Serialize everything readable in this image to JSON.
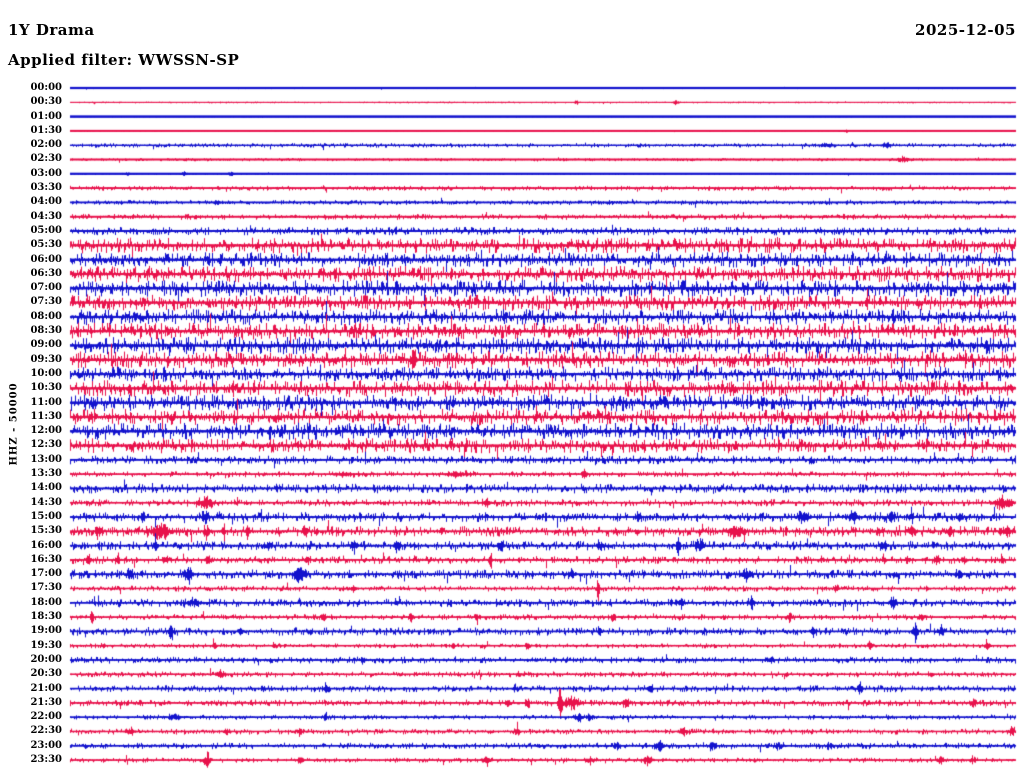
{
  "header": {
    "station": "1Y Drama",
    "date": "2025-12-05",
    "filter_label": "Applied filter: WWSSN-SP"
  },
  "y_axis_label": "HHZ - 50000",
  "chart_data": {
    "type": "line",
    "subtype": "helicorder-day-plot",
    "title": "1Y Drama",
    "date": "2025-12-05",
    "filter": "WWSSN-SP",
    "channel_scale_label": "HHZ - 50000",
    "row_minutes": 30,
    "rows_count": 48,
    "grid": false,
    "legend": "none",
    "colors": {
      "blue": "#1212cd",
      "red": "#e8114b"
    },
    "amplitude_note": "noise = background envelope half-height in px; events = [x_fraction_of_row, peak_amp_px, sigma_px]",
    "rows": [
      {
        "t": "00:00",
        "c": "blue",
        "base": 2.2,
        "noise": 0.3,
        "events": []
      },
      {
        "t": "00:30",
        "c": "red",
        "base": 1.0,
        "noise": 0.3,
        "events": [
          [
            0.535,
            2,
            1.2
          ],
          [
            0.64,
            2,
            2
          ]
        ]
      },
      {
        "t": "01:00",
        "c": "blue",
        "base": 2.5,
        "noise": 0.15,
        "events": []
      },
      {
        "t": "01:30",
        "c": "red",
        "base": 2.0,
        "noise": 0.2,
        "events": [
          [
            0.82,
            1.5,
            1.2
          ]
        ]
      },
      {
        "t": "02:00",
        "c": "blue",
        "base": 1.2,
        "noise": 0.9,
        "events": [
          [
            0.8,
            2,
            4
          ],
          [
            0.862,
            2.5,
            3
          ]
        ]
      },
      {
        "t": "02:30",
        "c": "red",
        "base": 2.0,
        "noise": 0.6,
        "events": [
          [
            0.88,
            2.5,
            4
          ]
        ]
      },
      {
        "t": "03:00",
        "c": "blue",
        "base": 2.2,
        "noise": 0.35,
        "events": [
          [
            0.06,
            1.5,
            2
          ],
          [
            0.12,
            2,
            2
          ],
          [
            0.17,
            2,
            2
          ]
        ]
      },
      {
        "t": "03:30",
        "c": "red",
        "base": 1.8,
        "noise": 1.0,
        "events": []
      },
      {
        "t": "04:00",
        "c": "blue",
        "base": 1.8,
        "noise": 1.0,
        "events": [
          [
            0.155,
            2.5,
            2
          ]
        ]
      },
      {
        "t": "04:30",
        "c": "red",
        "base": 1.8,
        "noise": 1.2,
        "events": []
      },
      {
        "t": "05:00",
        "c": "blue",
        "base": 2.0,
        "noise": 1.7,
        "events": []
      },
      {
        "t": "05:30",
        "c": "red",
        "base": 1.6,
        "noise": 3.3,
        "events": []
      },
      {
        "t": "06:00",
        "c": "blue",
        "base": 1.6,
        "noise": 3.2,
        "events": []
      },
      {
        "t": "06:30",
        "c": "red",
        "base": 1.6,
        "noise": 3.4,
        "events": []
      },
      {
        "t": "07:00",
        "c": "blue",
        "base": 1.6,
        "noise": 3.6,
        "events": []
      },
      {
        "t": "07:30",
        "c": "red",
        "base": 1.6,
        "noise": 3.4,
        "events": []
      },
      {
        "t": "08:00",
        "c": "blue",
        "base": 1.6,
        "noise": 3.4,
        "events": []
      },
      {
        "t": "08:30",
        "c": "red",
        "base": 1.6,
        "noise": 3.6,
        "events": []
      },
      {
        "t": "09:00",
        "c": "blue",
        "base": 1.6,
        "noise": 3.6,
        "events": []
      },
      {
        "t": "09:30",
        "c": "red",
        "base": 1.6,
        "noise": 3.6,
        "events": [
          [
            0.363,
            11,
            1.2
          ]
        ]
      },
      {
        "t": "10:00",
        "c": "blue",
        "base": 1.6,
        "noise": 3.2,
        "events": []
      },
      {
        "t": "10:30",
        "c": "red",
        "base": 1.6,
        "noise": 3.6,
        "events": []
      },
      {
        "t": "11:00",
        "c": "blue",
        "base": 1.6,
        "noise": 3.6,
        "events": []
      },
      {
        "t": "11:30",
        "c": "red",
        "base": 1.6,
        "noise": 3.6,
        "events": []
      },
      {
        "t": "12:00",
        "c": "blue",
        "base": 1.6,
        "noise": 3.6,
        "events": []
      },
      {
        "t": "12:30",
        "c": "red",
        "base": 1.6,
        "noise": 3.2,
        "events": []
      },
      {
        "t": "13:00",
        "c": "blue",
        "base": 1.6,
        "noise": 1.8,
        "events": []
      },
      {
        "t": "13:30",
        "c": "red",
        "base": 1.4,
        "noise": 1.2,
        "events": [
          [
            0.289,
            2,
            6
          ],
          [
            0.41,
            2,
            8
          ],
          [
            0.544,
            5,
            1.5
          ]
        ]
      },
      {
        "t": "14:00",
        "c": "blue",
        "base": 1.6,
        "noise": 2.0,
        "events": []
      },
      {
        "t": "14:30",
        "c": "red",
        "base": 1.4,
        "noise": 1.5,
        "events": [
          [
            0.142,
            5,
            5
          ],
          [
            0.44,
            2,
            3
          ],
          [
            0.986,
            5,
            6
          ]
        ]
      },
      {
        "t": "15:00",
        "c": "blue",
        "base": 1.5,
        "noise": 2.0,
        "events": [
          [
            0.077,
            3,
            2
          ],
          [
            0.143,
            6,
            2
          ],
          [
            0.6,
            4,
            2
          ],
          [
            0.775,
            4,
            4
          ],
          [
            0.828,
            5,
            3
          ],
          [
            0.868,
            5,
            2
          ],
          [
            0.888,
            4,
            2
          ],
          [
            0.94,
            3,
            2
          ]
        ]
      },
      {
        "t": "15:30",
        "c": "red",
        "base": 1.5,
        "noise": 2.2,
        "events": [
          [
            0.03,
            4,
            2
          ],
          [
            0.096,
            6,
            7
          ],
          [
            0.145,
            4,
            2
          ],
          [
            0.162,
            8,
            1.2
          ],
          [
            0.187,
            5,
            1.5
          ],
          [
            0.248,
            4,
            1.5
          ],
          [
            0.705,
            6,
            5
          ],
          [
            0.89,
            4,
            2
          ],
          [
            0.93,
            4,
            2
          ],
          [
            0.99,
            4,
            3
          ]
        ]
      },
      {
        "t": "16:00",
        "c": "blue",
        "base": 1.5,
        "noise": 2.0,
        "events": [
          [
            0.09,
            4,
            1.5
          ],
          [
            0.21,
            4,
            2
          ],
          [
            0.3,
            4,
            2
          ],
          [
            0.345,
            4,
            2
          ],
          [
            0.455,
            4,
            2
          ],
          [
            0.56,
            4,
            2
          ],
          [
            0.643,
            10,
            1.2
          ],
          [
            0.665,
            5,
            3
          ],
          [
            0.86,
            4,
            2
          ]
        ]
      },
      {
        "t": "16:30",
        "c": "red",
        "base": 1.4,
        "noise": 1.6,
        "events": [
          [
            0.02,
            4,
            1.5
          ],
          [
            0.05,
            4,
            1.5
          ],
          [
            0.1,
            4,
            1.5
          ],
          [
            0.145,
            5,
            1.5
          ],
          [
            0.25,
            4,
            1.5
          ],
          [
            0.444,
            8,
            1.2
          ],
          [
            0.86,
            4,
            1.5
          ],
          [
            0.885,
            4,
            1.5
          ],
          [
            0.915,
            4,
            1.5
          ],
          [
            0.945,
            4,
            1.5
          ],
          [
            0.985,
            4,
            1.5
          ]
        ]
      },
      {
        "t": "17:00",
        "c": "blue",
        "base": 1.5,
        "noise": 2.0,
        "events": [
          [
            0.063,
            4,
            1.5
          ],
          [
            0.125,
            7,
            2.5
          ],
          [
            0.243,
            6,
            4
          ],
          [
            0.53,
            3,
            2
          ],
          [
            0.715,
            5,
            3
          ],
          [
            0.94,
            4,
            2
          ]
        ]
      },
      {
        "t": "17:30",
        "c": "red",
        "base": 1.4,
        "noise": 1.2,
        "events": [
          [
            0.3,
            2,
            2
          ],
          [
            0.558,
            12,
            1.0
          ],
          [
            0.81,
            4,
            1.5
          ]
        ]
      },
      {
        "t": "18:00",
        "c": "blue",
        "base": 1.5,
        "noise": 1.7,
        "events": [
          [
            0.13,
            3,
            5
          ],
          [
            0.345,
            3,
            1.5
          ],
          [
            0.645,
            4,
            2
          ],
          [
            0.72,
            4,
            2
          ],
          [
            0.87,
            5,
            2
          ]
        ]
      },
      {
        "t": "18:30",
        "c": "red",
        "base": 1.4,
        "noise": 1.2,
        "events": [
          [
            0.023,
            4,
            1.2
          ],
          [
            0.268,
            3,
            1.5
          ],
          [
            0.36,
            3,
            1.5
          ],
          [
            0.43,
            3,
            1.5
          ],
          [
            0.573,
            4,
            1.5
          ],
          [
            0.76,
            4,
            1.5
          ],
          [
            0.9,
            3,
            1.5
          ]
        ]
      },
      {
        "t": "19:00",
        "c": "blue",
        "base": 1.5,
        "noise": 1.7,
        "events": [
          [
            0.106,
            7,
            1.5
          ],
          [
            0.18,
            3,
            1.5
          ],
          [
            0.56,
            3,
            1.5
          ],
          [
            0.785,
            3,
            1.5
          ],
          [
            0.893,
            10,
            1.5
          ],
          [
            0.92,
            4,
            2
          ]
        ]
      },
      {
        "t": "19:30",
        "c": "red",
        "base": 1.4,
        "noise": 1.0,
        "events": [
          [
            0.035,
            2.5,
            1.2
          ],
          [
            0.153,
            3,
            1.2
          ],
          [
            0.215,
            2.5,
            1.2
          ],
          [
            0.405,
            2.5,
            1.2
          ],
          [
            0.483,
            2.5,
            1.2
          ],
          [
            0.845,
            3,
            1.5
          ],
          [
            0.97,
            3,
            2
          ]
        ]
      },
      {
        "t": "20:00",
        "c": "blue",
        "base": 1.5,
        "noise": 1.4,
        "events": [
          [
            0.31,
            2,
            2
          ],
          [
            0.6,
            2,
            2
          ],
          [
            0.74,
            2,
            2
          ]
        ]
      },
      {
        "t": "20:30",
        "c": "red",
        "base": 1.4,
        "noise": 1.2,
        "events": [
          [
            0.159,
            3,
            3
          ],
          [
            0.475,
            2,
            2
          ],
          [
            0.91,
            2,
            2
          ]
        ]
      },
      {
        "t": "21:00",
        "c": "blue",
        "base": 1.5,
        "noise": 1.4,
        "events": [
          [
            0.27,
            4,
            1.5
          ],
          [
            0.47,
            3,
            1.5
          ],
          [
            0.613,
            3,
            2
          ],
          [
            0.835,
            5,
            1.5
          ]
        ]
      },
      {
        "t": "21:30",
        "c": "red",
        "base": 1.4,
        "noise": 1.4,
        "events": [
          [
            0.462,
            4,
            1.5
          ],
          [
            0.483,
            4,
            1.5
          ],
          [
            0.518,
            12,
            1.5
          ],
          [
            0.53,
            6,
            5
          ],
          [
            0.587,
            4,
            2
          ],
          [
            0.955,
            5,
            1.5
          ]
        ]
      },
      {
        "t": "22:00",
        "c": "blue",
        "base": 1.5,
        "noise": 1.0,
        "events": [
          [
            0.111,
            3,
            4
          ],
          [
            0.27,
            4,
            1.2
          ],
          [
            0.537,
            3,
            3
          ],
          [
            0.55,
            3,
            2
          ]
        ]
      },
      {
        "t": "22:30",
        "c": "red",
        "base": 1.4,
        "noise": 1.2,
        "events": [
          [
            0.063,
            3,
            3
          ],
          [
            0.165,
            3,
            2
          ],
          [
            0.243,
            3,
            1.5
          ],
          [
            0.472,
            3,
            1.5
          ],
          [
            0.648,
            3,
            2
          ],
          [
            0.995,
            4,
            2
          ]
        ]
      },
      {
        "t": "23:00",
        "c": "blue",
        "base": 1.5,
        "noise": 1.3,
        "events": [
          [
            0.578,
            3,
            2
          ],
          [
            0.623,
            4,
            3
          ],
          [
            0.678,
            3,
            2
          ],
          [
            0.75,
            3,
            2
          ],
          [
            0.803,
            3,
            2
          ]
        ]
      },
      {
        "t": "23:30",
        "c": "red",
        "base": 1.4,
        "noise": 1.0,
        "events": [
          [
            0.145,
            7,
            2
          ],
          [
            0.243,
            3,
            2
          ],
          [
            0.44,
            3,
            3
          ],
          [
            0.55,
            3,
            3
          ],
          [
            0.61,
            4,
            3
          ],
          [
            0.92,
            3,
            2
          ],
          [
            0.955,
            3,
            2
          ]
        ]
      }
    ]
  }
}
